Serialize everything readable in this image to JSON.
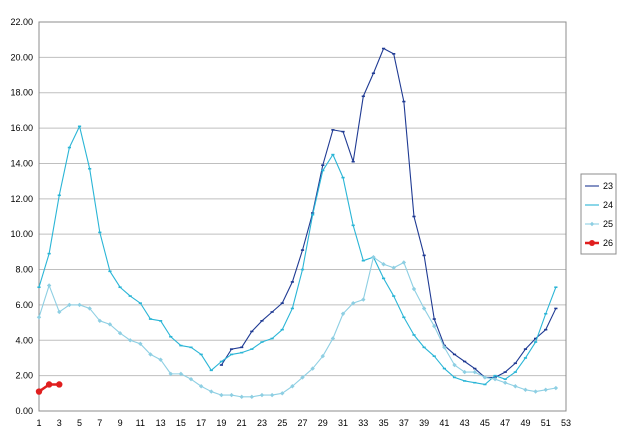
{
  "chart_data": {
    "type": "line",
    "title": "",
    "xlabel": "",
    "ylabel": "",
    "xlim": [
      1,
      53
    ],
    "ylim": [
      0,
      22
    ],
    "x_ticks": [
      1,
      3,
      5,
      7,
      9,
      11,
      13,
      15,
      17,
      19,
      21,
      23,
      25,
      27,
      29,
      31,
      33,
      35,
      37,
      39,
      41,
      43,
      45,
      47,
      49,
      51,
      53
    ],
    "y_ticks": [
      0,
      2,
      4,
      6,
      8,
      10,
      12,
      14,
      16,
      18,
      20,
      22
    ],
    "y_tick_labels": [
      "0.00",
      "2.00",
      "4.00",
      "6.00",
      "8.00",
      "10.00",
      "12.00",
      "14.00",
      "16.00",
      "18.00",
      "20.00",
      "22.00"
    ],
    "grid": "horizontal",
    "legend_position": "right",
    "series": [
      {
        "name": "23",
        "color": "#1f3a93",
        "marker": "dash",
        "x": [
          19,
          20,
          21,
          22,
          23,
          24,
          25,
          26,
          27,
          28,
          29,
          30,
          31,
          32,
          33,
          34,
          35,
          36,
          37,
          38,
          39,
          40,
          41,
          42,
          43,
          44,
          45,
          46,
          47,
          48,
          49,
          50,
          51,
          52
        ],
        "values": [
          2.6,
          3.5,
          3.6,
          4.5,
          5.1,
          5.6,
          6.1,
          7.3,
          9.1,
          11.2,
          13.9,
          15.9,
          15.8,
          14.1,
          17.8,
          19.1,
          20.5,
          20.2,
          17.5,
          11.0,
          8.8,
          5.2,
          3.7,
          3.2,
          2.8,
          2.4,
          1.9,
          1.9,
          2.2,
          2.7,
          3.5,
          4.1,
          4.6,
          5.8
        ]
      },
      {
        "name": "24",
        "color": "#2ab5d6",
        "marker": "dash",
        "x": [
          1,
          2,
          3,
          4,
          5,
          6,
          7,
          8,
          9,
          10,
          11,
          12,
          13,
          14,
          15,
          16,
          17,
          18,
          19,
          20,
          21,
          22,
          23,
          24,
          25,
          26,
          27,
          28,
          29,
          30,
          31,
          32,
          33,
          34,
          35,
          36,
          37,
          38,
          39,
          40,
          41,
          42,
          43,
          44,
          45,
          46,
          47,
          48,
          49,
          50,
          51,
          52
        ],
        "values": [
          7.0,
          8.9,
          12.2,
          14.9,
          16.1,
          13.7,
          10.1,
          7.9,
          7.0,
          6.5,
          6.1,
          5.2,
          5.1,
          4.2,
          3.7,
          3.6,
          3.2,
          2.3,
          2.8,
          3.2,
          3.3,
          3.5,
          3.9,
          4.1,
          4.6,
          5.8,
          8.0,
          11.1,
          13.6,
          14.5,
          13.2,
          10.5,
          8.5,
          8.7,
          7.5,
          6.5,
          5.3,
          4.3,
          3.6,
          3.1,
          2.4,
          1.9,
          1.7,
          1.6,
          1.5,
          2.0,
          1.8,
          2.2,
          3.0,
          3.9,
          5.5,
          7.0
        ]
      },
      {
        "name": "25",
        "color": "#8ecfe3",
        "marker": "diamond",
        "x": [
          1,
          2,
          3,
          4,
          5,
          6,
          7,
          8,
          9,
          10,
          11,
          12,
          13,
          14,
          15,
          16,
          17,
          18,
          19,
          20,
          21,
          22,
          23,
          24,
          25,
          26,
          27,
          28,
          29,
          30,
          31,
          32,
          33,
          34,
          35,
          36,
          37,
          38,
          39,
          40,
          41,
          42,
          43,
          44,
          45,
          46,
          47,
          48,
          49,
          50,
          51,
          52
        ],
        "values": [
          5.3,
          7.1,
          5.6,
          6.0,
          6.0,
          5.8,
          5.1,
          4.9,
          4.4,
          4.0,
          3.8,
          3.2,
          2.9,
          2.1,
          2.1,
          1.8,
          1.4,
          1.1,
          0.9,
          0.9,
          0.8,
          0.8,
          0.9,
          0.9,
          1.0,
          1.4,
          1.9,
          2.4,
          3.1,
          4.1,
          5.5,
          6.1,
          6.3,
          8.7,
          8.3,
          8.1,
          8.4,
          6.9,
          5.8,
          4.8,
          3.6,
          2.6,
          2.2,
          2.2,
          1.9,
          1.8,
          1.6,
          1.4,
          1.2,
          1.1,
          1.2,
          1.3
        ]
      },
      {
        "name": "26",
        "color": "#e01e1e",
        "marker": "circle",
        "x": [
          1,
          2,
          3
        ],
        "values": [
          1.1,
          1.5,
          1.5
        ]
      }
    ]
  }
}
